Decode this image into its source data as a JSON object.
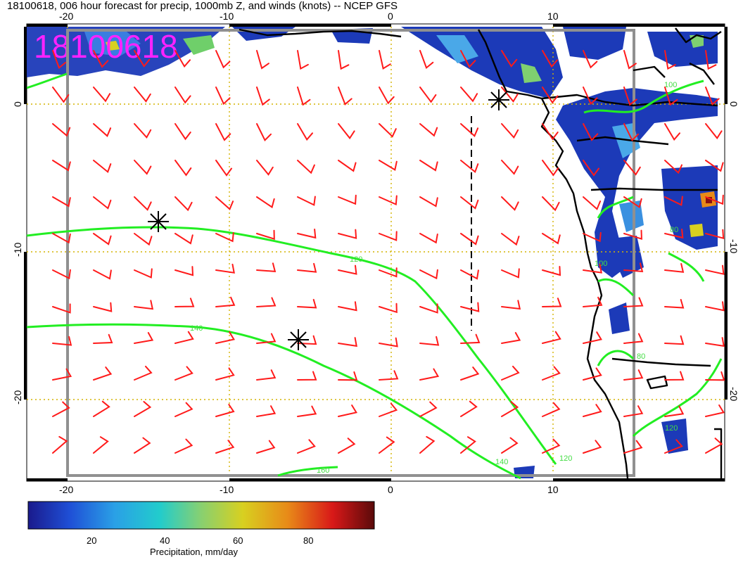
{
  "title": "18100618, 006 hour forecast for precip, 1000mb Z, and winds (knots) -- NCEP GFS",
  "stamp": "18100618",
  "axes": {
    "top_ticks": [
      "-20",
      "-10",
      "0",
      "10"
    ],
    "bottom_ticks": [
      "-20",
      "-10",
      "0",
      "10"
    ],
    "left_ticks": [
      "0",
      "-10",
      "-20"
    ],
    "right_ticks": [
      "0",
      "-10",
      "-20"
    ]
  },
  "contour_labels": [
    "120",
    "140",
    "160",
    "140",
    "120",
    "100",
    "80",
    "100",
    "80",
    "120"
  ],
  "colorbar": {
    "label": "Precipitation, mm/day",
    "ticks": [
      "20",
      "40",
      "60",
      "80"
    ],
    "stops": [
      "#1a1a8c",
      "#1f4fd6",
      "#2aa0e6",
      "#22cccc",
      "#88d070",
      "#d8d020",
      "#e88a18",
      "#d81818",
      "#5a0a0a"
    ]
  },
  "colors": {
    "wind_barbs": "#ff1a1a",
    "height_contours": "#22ee22",
    "precip_low": "#1c3ab8",
    "grid_lines": "#d4b400",
    "stamp": "#ff22ff"
  },
  "icons": [
    "storm-marker-icon",
    "storm-marker-icon",
    "storm-marker-icon"
  ]
}
